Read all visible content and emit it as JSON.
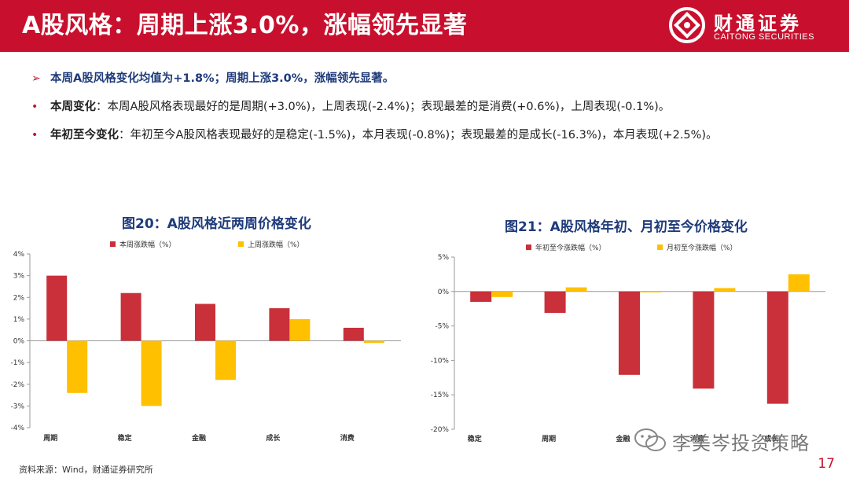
{
  "header": {
    "title": "A股风格：周期上涨3.0%，涨幅领先显著",
    "logo_cn": "财通证券",
    "logo_en": "CAITONG SECURITIES"
  },
  "bullets": [
    {
      "marker": "➢",
      "head": "",
      "text": "本周A股风格变化均值为+1.8%；周期上涨3.0%，涨幅领先显著。"
    },
    {
      "marker": "•",
      "head": "本周变化",
      "text": "：本周A股风格表现最好的是周期(+3.0%)，上周表现(-2.4%)；表现最差的是消费(+0.6%)，上周表现(-0.1%)。"
    },
    {
      "marker": "•",
      "head": "年初至今变化",
      "text": "：年初至今A股风格表现最好的是稳定(-1.5%)，本月表现(-0.8%)；表现最差的是成长(-16.3%)，本月表现(+2.5%)。"
    }
  ],
  "chart_data": [
    {
      "type": "bar",
      "title": "图20：A股风格近两周价格变化",
      "categories": [
        "周期",
        "稳定",
        "金融",
        "成长",
        "消费"
      ],
      "series": [
        {
          "name": "本周涨跌幅（%）",
          "values": [
            3.0,
            2.2,
            1.7,
            1.5,
            0.6
          ],
          "color": "#c9303a"
        },
        {
          "name": "上周涨跌幅（%）",
          "values": [
            -2.4,
            -3.0,
            -1.8,
            1.0,
            -0.1
          ],
          "color": "#ffc000"
        }
      ],
      "ylim": [
        -4,
        4
      ],
      "yticks": [
        "4%",
        "3%",
        "2%",
        "1%",
        "0%",
        "-1%",
        "-2%",
        "-3%",
        "-4%"
      ],
      "legend": "top"
    },
    {
      "type": "bar",
      "title": "图21：A股风格年初、月初至今价格变化",
      "categories": [
        "稳定",
        "周期",
        "金融",
        "消费",
        "成长"
      ],
      "series": [
        {
          "name": "年初至今涨跌幅（%）",
          "values": [
            -1.5,
            -3.1,
            -12.1,
            -14.1,
            -16.3
          ],
          "color": "#c9303a"
        },
        {
          "name": "月初至今涨跌幅（%）",
          "values": [
            -0.8,
            0.6,
            -0.1,
            0.5,
            2.5
          ],
          "color": "#ffc000"
        }
      ],
      "ylim": [
        -20,
        5
      ],
      "yticks": [
        "5%",
        "0%",
        "-5%",
        "-10%",
        "-15%",
        "-20%"
      ],
      "legend": "top"
    }
  ],
  "footer": {
    "source": "资料来源：Wind，财通证券研究所",
    "page": "17",
    "watermark": "李美岑投资策略"
  },
  "colors": {
    "brand_red": "#c8102e",
    "title_blue": "#1f3b7a",
    "bar_red": "#c9303a",
    "bar_yellow": "#ffc000"
  }
}
